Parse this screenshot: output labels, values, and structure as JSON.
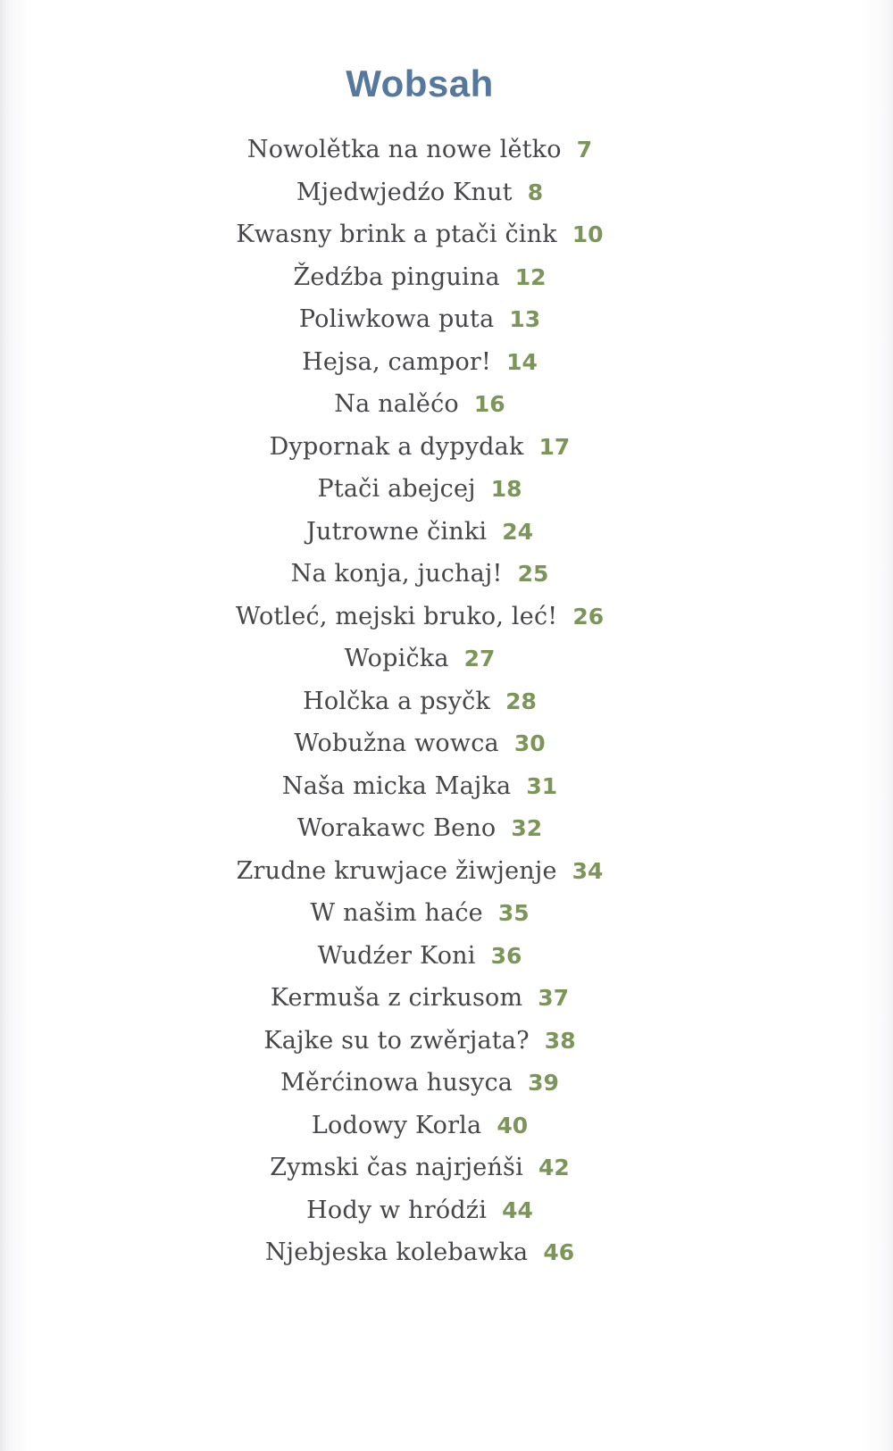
{
  "page": {
    "title": "Wobsah"
  },
  "toc": {
    "entries": [
      {
        "label": "Nowolětka na nowe lětko",
        "page": "7"
      },
      {
        "label": "Mjedwjedźo Knut",
        "page": "8"
      },
      {
        "label": "Kwasny brink a ptači čink",
        "page": "10"
      },
      {
        "label": "Žedźba pinguina",
        "page": "12"
      },
      {
        "label": "Poliwkowa puta",
        "page": "13"
      },
      {
        "label": "Hejsa, campor!",
        "page": "14"
      },
      {
        "label": "Na nalěćo",
        "page": "16"
      },
      {
        "label": "Dypornak a dypydak",
        "page": "17"
      },
      {
        "label": "Ptači abejcej",
        "page": "18"
      },
      {
        "label": "Jutrowne činki",
        "page": "24"
      },
      {
        "label": "Na konja, juchaj!",
        "page": "25"
      },
      {
        "label": "Wotleć, mejski bruko, leć!",
        "page": "26"
      },
      {
        "label": "Wopička",
        "page": "27"
      },
      {
        "label": "Holčka a psyčk",
        "page": "28"
      },
      {
        "label": "Wobužna wowca",
        "page": "30"
      },
      {
        "label": "Naša micka Majka",
        "page": "31"
      },
      {
        "label": "Worakawc Beno",
        "page": "32"
      },
      {
        "label": "Zrudne kruwjace žiwjenje",
        "page": "34"
      },
      {
        "label": "W našim haće",
        "page": "35"
      },
      {
        "label": "Wudźer Koni",
        "page": "36"
      },
      {
        "label": "Kermuša z cirkusom",
        "page": "37"
      },
      {
        "label": "Kajke su to zwěrjata?",
        "page": "38"
      },
      {
        "label": "Měrćinowa husyca",
        "page": "39"
      },
      {
        "label": "Lodowy Korla",
        "page": "40"
      },
      {
        "label": "Zymski čas najrjeńši",
        "page": "42"
      },
      {
        "label": "Hody w hródźi",
        "page": "44"
      },
      {
        "label": "Njebjeska kolebawka",
        "page": "46"
      }
    ]
  },
  "colors": {
    "title": "#56789f",
    "entry_text": "#46464a",
    "page_number": "#7c965a"
  }
}
